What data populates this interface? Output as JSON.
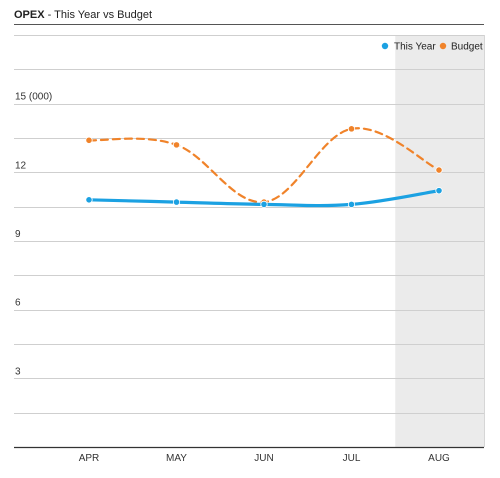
{
  "header": {
    "title": "OPEX",
    "subtitle": "- This Year vs Budget"
  },
  "chart_data": {
    "type": "line",
    "categories": [
      "APR",
      "MAY",
      "JUN",
      "JUL",
      "AUG"
    ],
    "ylim": [
      0,
      18
    ],
    "yticks": [
      3,
      6,
      9,
      12,
      15
    ],
    "ytick_labels": [
      "3",
      "6",
      "9",
      "12",
      "15 (000)"
    ],
    "grid": true,
    "legend": "top-right",
    "highlight_category": "AUG",
    "series": [
      {
        "name": "This Year",
        "values": [
          10.8,
          10.7,
          10.6,
          10.6,
          11.2
        ],
        "color": "#1ba1e2",
        "style": "solid"
      },
      {
        "name": "Budget",
        "values": [
          13.4,
          13.2,
          10.7,
          13.9,
          12.1
        ],
        "color": "#f0832a",
        "style": "dashed"
      }
    ]
  }
}
